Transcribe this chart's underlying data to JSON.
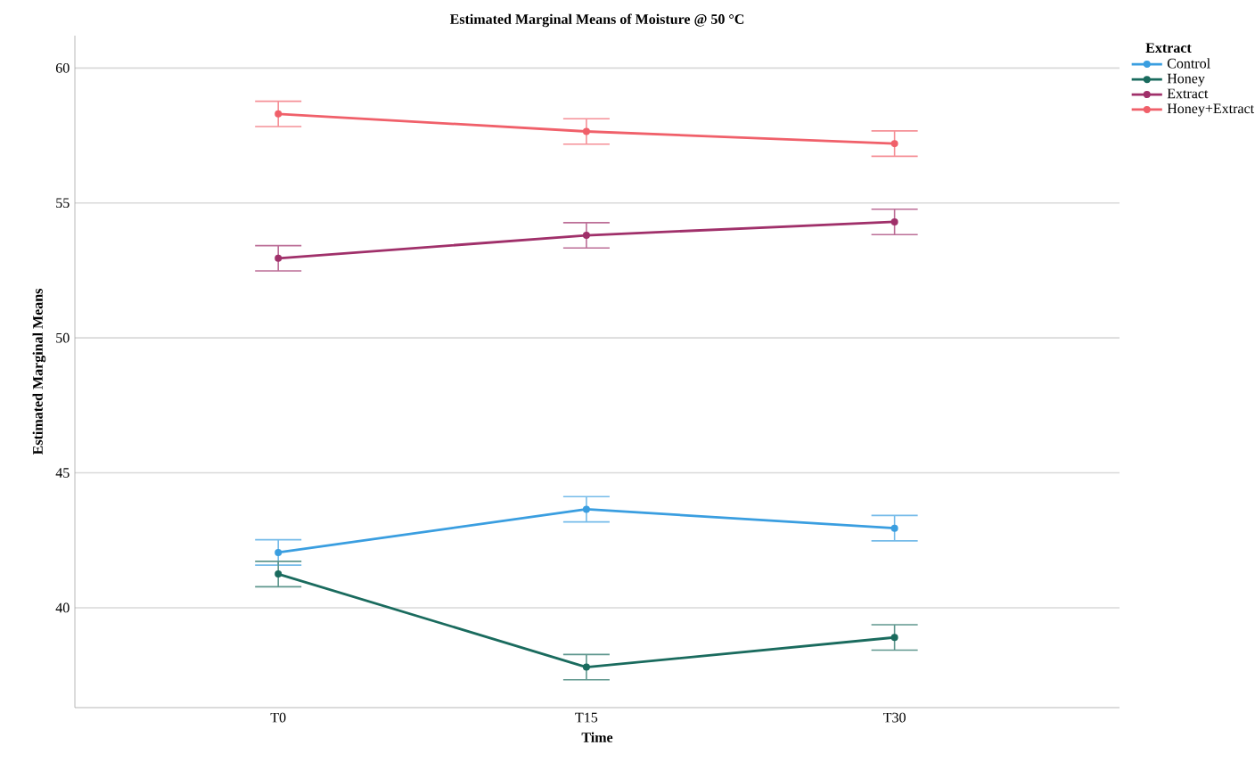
{
  "chart_data": {
    "type": "line",
    "title": "Estimated Marginal Means of Moisture @ 50 °C",
    "xlabel": "Time",
    "ylabel": "Estimated Marginal Means",
    "legend_title": "Extract",
    "categories": [
      "T0",
      "T15",
      "T30"
    ],
    "series": [
      {
        "name": "Control",
        "color": "#3a9ee0",
        "values": [
          42.05,
          43.65,
          42.95
        ],
        "errors": [
          0.47,
          0.47,
          0.47
        ]
      },
      {
        "name": "Honey",
        "color": "#1a6b5e",
        "values": [
          41.25,
          37.8,
          38.9
        ],
        "errors": [
          0.47,
          0.47,
          0.47
        ]
      },
      {
        "name": "Extract",
        "color": "#a0306a",
        "values": [
          52.95,
          53.8,
          54.3
        ],
        "errors": [
          0.47,
          0.47,
          0.47
        ]
      },
      {
        "name": "Honey+Extract",
        "color": "#f0606a",
        "values": [
          58.3,
          57.65,
          57.2
        ],
        "errors": [
          0.47,
          0.47,
          0.47
        ]
      }
    ],
    "ylim": [
      36.3,
      61.2
    ],
    "yticks": [
      40,
      45,
      50,
      55,
      60
    ],
    "grid": "y",
    "legend": "top right",
    "marker": "circle",
    "line_style": "solid"
  }
}
